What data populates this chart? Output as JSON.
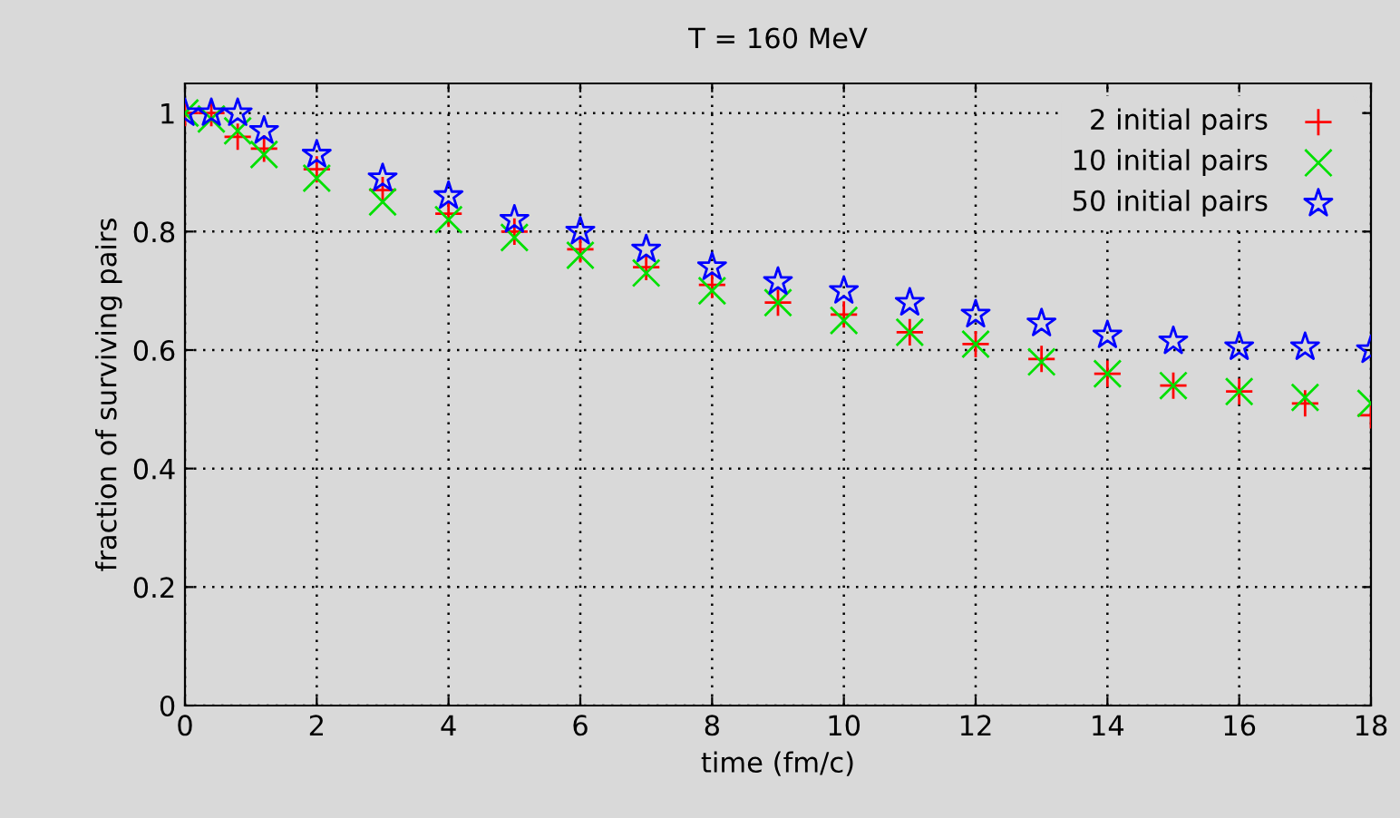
{
  "chart_data": {
    "type": "scatter",
    "title": "T = 160 MeV",
    "xlabel": "time (fm/c)",
    "ylabel": "fraction of surviving pairs",
    "x": [
      0,
      0.4,
      0.8,
      1.2,
      2,
      3,
      4,
      5,
      6,
      7,
      8,
      9,
      10,
      11,
      12,
      13,
      14,
      15,
      16,
      17,
      18
    ],
    "series": [
      {
        "name": "2 initial pairs",
        "color": "#ff0000",
        "marker": "plus",
        "values": [
          1.0,
          1.0,
          0.96,
          0.94,
          0.905,
          0.87,
          0.83,
          0.8,
          0.77,
          0.74,
          0.71,
          0.68,
          0.66,
          0.63,
          0.61,
          0.585,
          0.56,
          0.54,
          0.53,
          0.51,
          0.49
        ]
      },
      {
        "name": "10 initial pairs",
        "color": "#00e000",
        "marker": "cross",
        "values": [
          1.0,
          0.99,
          0.97,
          0.93,
          0.89,
          0.85,
          0.82,
          0.79,
          0.76,
          0.73,
          0.7,
          0.68,
          0.65,
          0.63,
          0.61,
          0.58,
          0.56,
          0.54,
          0.53,
          0.52,
          0.51
        ]
      },
      {
        "name": "50 initial pairs",
        "color": "#0000ff",
        "marker": "star",
        "values": [
          1.0,
          1.0,
          1.0,
          0.97,
          0.93,
          0.89,
          0.86,
          0.82,
          0.8,
          0.77,
          0.74,
          0.715,
          0.7,
          0.68,
          0.66,
          0.645,
          0.625,
          0.615,
          0.605,
          0.605,
          0.6
        ]
      }
    ],
    "xlim": [
      0,
      18
    ],
    "xticks": [
      0,
      2,
      4,
      6,
      8,
      10,
      12,
      14,
      16,
      18
    ],
    "ylim": [
      0,
      1.05
    ],
    "yticks": [
      0,
      0.2,
      0.4,
      0.6,
      0.8,
      1
    ],
    "grid": true,
    "legend": "top right"
  }
}
